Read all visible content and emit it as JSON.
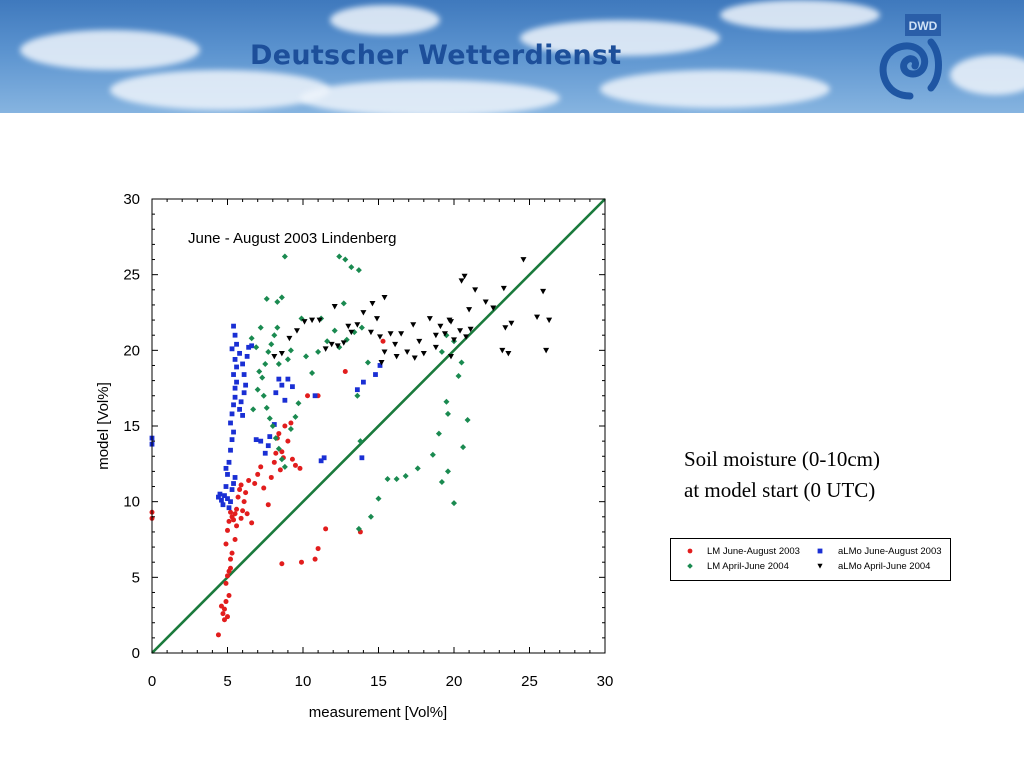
{
  "header": {
    "org_name": "Deutscher Wetterdienst",
    "logo_text": "DWD",
    "logo_icon": "dwd-spiral-icon"
  },
  "caption": {
    "line1": "Soil moisture (0-10cm)",
    "line2": "at model start (0 UTC)"
  },
  "colors": {
    "lm_jja_2003": "#e21d1d",
    "almo_jja_2003": "#1a2fd4",
    "lm_amj_2004": "#1a8a50",
    "almo_amj_2004": "#000000",
    "diagonal": "#1a7a3c"
  },
  "chart_data": {
    "type": "scatter",
    "title": "June - August 2003 Lindenberg",
    "xlabel": "measurement [Vol%]",
    "ylabel": "model [Vol%]",
    "xlim": [
      0,
      30
    ],
    "ylim": [
      0,
      30
    ],
    "xticks": [
      0,
      5,
      10,
      15,
      20,
      25,
      30
    ],
    "yticks": [
      0,
      5,
      10,
      15,
      20,
      25,
      30
    ],
    "grid": false,
    "reference_line": [
      [
        0,
        0
      ],
      [
        30,
        30
      ]
    ],
    "legend_placement": "outside-right",
    "series": [
      {
        "name": "LM June-August 2003",
        "marker": "circle",
        "color": "#e21d1d",
        "points": [
          [
            0,
            9.3
          ],
          [
            0,
            8.9
          ],
          [
            4.4,
            1.2
          ],
          [
            4.6,
            3.1
          ],
          [
            4.7,
            2.6
          ],
          [
            4.8,
            2.2
          ],
          [
            4.9,
            3.4
          ],
          [
            4.9,
            4.6
          ],
          [
            5.0,
            5.1
          ],
          [
            5.1,
            5.4
          ],
          [
            4.8,
            2.9
          ],
          [
            5.0,
            2.4
          ],
          [
            5.1,
            3.8
          ],
          [
            5.2,
            5.6
          ],
          [
            4.9,
            7.2
          ],
          [
            5.0,
            8.1
          ],
          [
            5.1,
            8.7
          ],
          [
            5.2,
            9.3
          ],
          [
            5.3,
            9.0
          ],
          [
            5.4,
            8.8
          ],
          [
            5.5,
            9.2
          ],
          [
            5.6,
            9.5
          ],
          [
            5.7,
            10.3
          ],
          [
            5.8,
            10.8
          ],
          [
            5.9,
            11.1
          ],
          [
            6.0,
            9.4
          ],
          [
            6.1,
            10.0
          ],
          [
            6.3,
            9.2
          ],
          [
            5.5,
            7.5
          ],
          [
            5.3,
            6.6
          ],
          [
            5.2,
            6.2
          ],
          [
            5.6,
            8.4
          ],
          [
            5.9,
            8.9
          ],
          [
            6.2,
            10.6
          ],
          [
            6.4,
            11.4
          ],
          [
            6.6,
            8.6
          ],
          [
            6.8,
            11.2
          ],
          [
            7.0,
            11.8
          ],
          [
            7.2,
            12.3
          ],
          [
            7.4,
            10.9
          ],
          [
            7.7,
            9.8
          ],
          [
            7.9,
            11.6
          ],
          [
            8.1,
            12.6
          ],
          [
            8.2,
            13.2
          ],
          [
            8.3,
            14.2
          ],
          [
            8.4,
            14.5
          ],
          [
            8.6,
            13.3
          ],
          [
            8.8,
            15.0
          ],
          [
            9.0,
            14.0
          ],
          [
            9.2,
            15.2
          ],
          [
            8.5,
            12.1
          ],
          [
            8.7,
            12.9
          ],
          [
            9.3,
            12.8
          ],
          [
            9.5,
            12.4
          ],
          [
            9.8,
            12.2
          ],
          [
            10.3,
            17.0
          ],
          [
            11.0,
            17.0
          ],
          [
            12.8,
            18.6
          ],
          [
            15.3,
            20.6
          ],
          [
            8.6,
            5.9
          ],
          [
            9.9,
            6.0
          ],
          [
            10.8,
            6.2
          ],
          [
            11.0,
            6.9
          ],
          [
            13.8,
            8.0
          ],
          [
            11.5,
            8.2
          ]
        ]
      },
      {
        "name": "aLMo June-August 2003",
        "marker": "square",
        "color": "#1a2fd4",
        "points": [
          [
            0,
            14.2
          ],
          [
            0,
            13.8
          ],
          [
            4.4,
            10.3
          ],
          [
            4.5,
            10.5
          ],
          [
            4.6,
            10.1
          ],
          [
            4.7,
            9.8
          ],
          [
            4.8,
            10.4
          ],
          [
            4.9,
            11.0
          ],
          [
            5.0,
            10.2
          ],
          [
            5.1,
            9.6
          ],
          [
            5.2,
            10.0
          ],
          [
            5.3,
            10.8
          ],
          [
            5.4,
            11.2
          ],
          [
            5.5,
            11.6
          ],
          [
            5.0,
            11.8
          ],
          [
            4.9,
            12.2
          ],
          [
            5.1,
            12.6
          ],
          [
            5.2,
            13.4
          ],
          [
            5.3,
            14.1
          ],
          [
            5.4,
            14.6
          ],
          [
            5.2,
            15.2
          ],
          [
            5.3,
            15.8
          ],
          [
            5.4,
            16.4
          ],
          [
            5.5,
            16.9
          ],
          [
            5.5,
            17.5
          ],
          [
            5.6,
            17.9
          ],
          [
            5.4,
            18.4
          ],
          [
            5.6,
            18.9
          ],
          [
            5.5,
            19.4
          ],
          [
            5.3,
            20.1
          ],
          [
            5.4,
            21.6
          ],
          [
            5.5,
            21.0
          ],
          [
            5.6,
            20.4
          ],
          [
            5.8,
            19.8
          ],
          [
            6.0,
            19.1
          ],
          [
            6.1,
            18.4
          ],
          [
            6.2,
            17.7
          ],
          [
            6.1,
            17.2
          ],
          [
            5.9,
            16.6
          ],
          [
            5.8,
            16.1
          ],
          [
            6.0,
            15.7
          ],
          [
            6.3,
            19.6
          ],
          [
            6.4,
            20.2
          ],
          [
            6.6,
            20.3
          ],
          [
            6.9,
            14.1
          ],
          [
            7.2,
            14.0
          ],
          [
            7.7,
            13.7
          ],
          [
            7.8,
            14.3
          ],
          [
            8.1,
            15.1
          ],
          [
            8.2,
            17.2
          ],
          [
            8.4,
            18.1
          ],
          [
            8.6,
            17.7
          ],
          [
            9.0,
            18.1
          ],
          [
            9.3,
            17.6
          ],
          [
            8.8,
            16.7
          ],
          [
            7.5,
            13.2
          ],
          [
            10.8,
            17.0
          ],
          [
            11.4,
            12.9
          ],
          [
            11.2,
            12.7
          ],
          [
            13.6,
            17.4
          ],
          [
            14.0,
            17.9
          ],
          [
            14.8,
            18.4
          ],
          [
            15.1,
            19.0
          ],
          [
            13.9,
            12.9
          ]
        ]
      },
      {
        "name": "LM April-June 2004",
        "marker": "diamond",
        "color": "#1a8a50",
        "points": [
          [
            6.7,
            16.1
          ],
          [
            7.0,
            17.4
          ],
          [
            7.3,
            18.2
          ],
          [
            7.5,
            19.1
          ],
          [
            7.7,
            19.9
          ],
          [
            7.9,
            20.4
          ],
          [
            8.1,
            21.0
          ],
          [
            8.3,
            21.5
          ],
          [
            7.6,
            23.4
          ],
          [
            8.3,
            23.2
          ],
          [
            8.6,
            23.5
          ],
          [
            8.8,
            26.2
          ],
          [
            9.2,
            20.0
          ],
          [
            9.0,
            19.4
          ],
          [
            7.2,
            21.5
          ],
          [
            6.6,
            20.8
          ],
          [
            6.9,
            20.2
          ],
          [
            7.4,
            17.0
          ],
          [
            7.6,
            16.2
          ],
          [
            7.8,
            15.5
          ],
          [
            8.0,
            15.0
          ],
          [
            8.2,
            14.2
          ],
          [
            8.4,
            13.5
          ],
          [
            8.6,
            12.8
          ],
          [
            8.8,
            12.3
          ],
          [
            9.2,
            14.8
          ],
          [
            9.5,
            15.6
          ],
          [
            9.7,
            16.5
          ],
          [
            10.2,
            19.6
          ],
          [
            10.6,
            18.5
          ],
          [
            11.0,
            19.9
          ],
          [
            11.2,
            22.1
          ],
          [
            11.6,
            20.6
          ],
          [
            12.1,
            21.3
          ],
          [
            12.4,
            26.2
          ],
          [
            12.8,
            26.0
          ],
          [
            13.2,
            25.5
          ],
          [
            13.7,
            25.3
          ],
          [
            12.7,
            23.1
          ],
          [
            12.4,
            20.2
          ],
          [
            12.9,
            20.7
          ],
          [
            13.4,
            21.2
          ],
          [
            13.9,
            21.5
          ],
          [
            14.3,
            19.2
          ],
          [
            13.6,
            17.0
          ],
          [
            13.8,
            14.0
          ],
          [
            13.7,
            8.2
          ],
          [
            14.5,
            9.0
          ],
          [
            15.0,
            10.2
          ],
          [
            15.6,
            11.5
          ],
          [
            16.2,
            11.5
          ],
          [
            16.8,
            11.7
          ],
          [
            17.6,
            12.2
          ],
          [
            18.6,
            13.1
          ],
          [
            19.0,
            14.5
          ],
          [
            19.5,
            16.6
          ],
          [
            19.6,
            15.8
          ],
          [
            19.2,
            11.3
          ],
          [
            19.6,
            12.0
          ],
          [
            20.0,
            9.9
          ],
          [
            20.6,
            13.6
          ],
          [
            20.9,
            15.4
          ],
          [
            20.5,
            19.2
          ],
          [
            20.3,
            18.3
          ],
          [
            20.0,
            20.6
          ],
          [
            19.2,
            19.9
          ],
          [
            19.5,
            21.0
          ],
          [
            9.9,
            22.1
          ],
          [
            8.4,
            19.1
          ],
          [
            7.1,
            18.6
          ]
        ]
      },
      {
        "name": "aLMo April-June 2004",
        "marker": "triangle-down",
        "color": "#000000",
        "points": [
          [
            8.1,
            19.6
          ],
          [
            8.6,
            19.8
          ],
          [
            9.1,
            20.8
          ],
          [
            9.6,
            21.3
          ],
          [
            10.1,
            21.9
          ],
          [
            10.6,
            22.0
          ],
          [
            11.1,
            22.0
          ],
          [
            11.5,
            20.1
          ],
          [
            11.9,
            20.4
          ],
          [
            12.3,
            20.3
          ],
          [
            12.7,
            20.5
          ],
          [
            13.2,
            21.2
          ],
          [
            13.6,
            21.7
          ],
          [
            14.0,
            22.5
          ],
          [
            14.5,
            21.2
          ],
          [
            14.9,
            22.1
          ],
          [
            15.1,
            20.9
          ],
          [
            15.4,
            19.9
          ],
          [
            15.8,
            21.1
          ],
          [
            16.1,
            20.4
          ],
          [
            16.5,
            21.1
          ],
          [
            16.9,
            19.9
          ],
          [
            17.3,
            21.7
          ],
          [
            17.7,
            20.6
          ],
          [
            18.0,
            19.8
          ],
          [
            18.4,
            22.1
          ],
          [
            18.8,
            21.0
          ],
          [
            19.1,
            21.6
          ],
          [
            19.4,
            21.1
          ],
          [
            19.7,
            22.0
          ],
          [
            20.0,
            20.7
          ],
          [
            20.4,
            21.3
          ],
          [
            20.8,
            20.9
          ],
          [
            21.1,
            21.4
          ],
          [
            19.8,
            19.6
          ],
          [
            20.5,
            24.6
          ],
          [
            21.4,
            24.0
          ],
          [
            22.1,
            23.2
          ],
          [
            23.3,
            24.1
          ],
          [
            23.4,
            21.5
          ],
          [
            23.8,
            21.8
          ],
          [
            23.2,
            20.0
          ],
          [
            23.6,
            19.8
          ],
          [
            24.6,
            26.0
          ],
          [
            25.9,
            23.9
          ],
          [
            26.3,
            22.0
          ],
          [
            26.1,
            20.0
          ],
          [
            25.5,
            22.2
          ],
          [
            20.7,
            24.9
          ],
          [
            15.2,
            19.2
          ],
          [
            16.2,
            19.6
          ],
          [
            17.4,
            19.5
          ],
          [
            18.8,
            20.2
          ],
          [
            14.6,
            23.1
          ],
          [
            15.4,
            23.5
          ],
          [
            13.0,
            21.6
          ],
          [
            12.1,
            22.9
          ],
          [
            19.8,
            21.9
          ],
          [
            21.0,
            22.7
          ],
          [
            22.6,
            22.8
          ]
        ]
      }
    ]
  }
}
